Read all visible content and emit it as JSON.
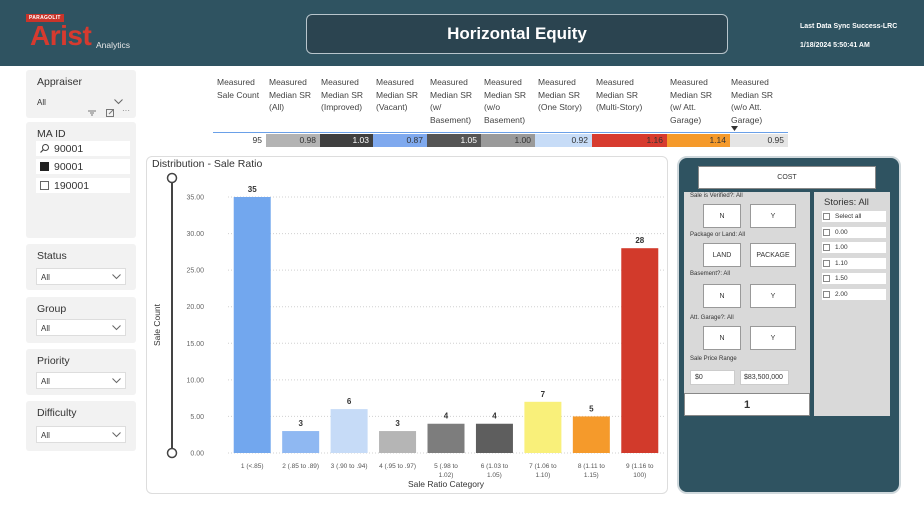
{
  "header": {
    "logo_badge": "PARAGOLIT",
    "logo_main": "Arist",
    "logo_sub": "Analytics",
    "title": "Horizontal Equity",
    "sync_label": "Last Data Sync Success-LRC",
    "sync_time": "1/18/2024 5:50:41 AM"
  },
  "slicers": {
    "appraiser": {
      "title": "Appraiser",
      "value": "All"
    },
    "ma_id": {
      "title": "MA ID",
      "search_value": "90001",
      "items": [
        {
          "label": "90001",
          "checked": true
        },
        {
          "label": "190001",
          "checked": false
        }
      ]
    },
    "status": {
      "title": "Status",
      "value": "All"
    },
    "group": {
      "title": "Group",
      "value": "All"
    },
    "priority": {
      "title": "Priority",
      "value": "All"
    },
    "difficulty": {
      "title": "Difficulty",
      "value": "All"
    }
  },
  "metrics": [
    {
      "head": [
        "Measured",
        "Sale Count"
      ],
      "value": "95",
      "color": "#ffffff",
      "fg": "#333333"
    },
    {
      "head": [
        "Measured",
        "Median SR",
        "(All)"
      ],
      "value": "0.98",
      "color": "#b3b3b3",
      "fg": "#333333"
    },
    {
      "head": [
        "Measured",
        "Median SR",
        "(Improved)"
      ],
      "value": "1.03",
      "color": "#3f3f3f",
      "fg": "#ffffff"
    },
    {
      "head": [
        "Measured",
        "Median SR",
        "(Vacant)"
      ],
      "value": "0.87",
      "color": "#7fa9ee",
      "fg": "#333333"
    },
    {
      "head": [
        "Measured",
        "Median SR",
        "(w/",
        "Basement)"
      ],
      "value": "1.05",
      "color": "#555555",
      "fg": "#ffffff"
    },
    {
      "head": [
        "Measured",
        "Median SR",
        "(w/o",
        "Basement)"
      ],
      "value": "1.00",
      "color": "#9a9a9a",
      "fg": "#333333"
    },
    {
      "head": [
        "Measured",
        "Median SR",
        "(One Story)"
      ],
      "value": "0.92",
      "color": "#c7dcf7",
      "fg": "#333333"
    },
    {
      "head": [
        "Measured",
        "Median SR",
        "(Multi-Story)"
      ],
      "value": "1.16",
      "color": "#d73b2f",
      "fg": "#333333"
    },
    {
      "head": [
        "Measured",
        "Median SR",
        "(w/ Att.",
        "Garage)"
      ],
      "value": "1.14",
      "color": "#f59a2b",
      "fg": "#333333"
    },
    {
      "head": [
        "Measured",
        "Median SR",
        "(w/o Att.",
        "Garage)"
      ],
      "value": "0.95",
      "color": "#e5e5e5",
      "fg": "#333333"
    }
  ],
  "chart_data": {
    "type": "bar",
    "title": "Distribution - Sale Ratio",
    "xlabel": "Sale Ratio Category",
    "ylabel": "Sale Count",
    "ylim": [
      0,
      35
    ],
    "yticks": [
      "0.00",
      "5.00",
      "10.00",
      "15.00",
      "20.00",
      "25.00",
      "30.00",
      "35.00"
    ],
    "grid": true,
    "categories": [
      [
        "1 (<.85)"
      ],
      [
        "2 (.85 to .89)"
      ],
      [
        "3 (.90 to .94)"
      ],
      [
        "4 (.95 to .97)"
      ],
      [
        "5 (.98 to",
        "1.02)"
      ],
      [
        "6 (1.03 to",
        "1.05)"
      ],
      [
        "7 (1.06 to",
        "1.10)"
      ],
      [
        "8 (1.11 to",
        "1.15)"
      ],
      [
        "9 (1.16 to",
        "100)"
      ]
    ],
    "values": [
      35,
      3,
      6,
      3,
      4,
      4,
      7,
      5,
      28
    ],
    "value_labels": [
      "35",
      "3",
      "6",
      "3",
      "4",
      "4",
      "7",
      "5",
      "28"
    ],
    "colors": [
      "#72a7ee",
      "#8fb8f2",
      "#c6dbf7",
      "#b5b5b5",
      "#7d7d7d",
      "#5e5e5e",
      "#f9f07a",
      "#f59a2b",
      "#d23a2b"
    ]
  },
  "filters": {
    "cost_label": "COST",
    "verified": {
      "label": "Sale is Verified?: All",
      "options": [
        "N",
        "Y"
      ]
    },
    "package": {
      "label": "Package or Land: All",
      "options": [
        "LAND",
        "PACKAGE"
      ]
    },
    "basement": {
      "label": "Basement?: All",
      "options": [
        "N",
        "Y"
      ]
    },
    "garage": {
      "label": "Att. Garage?: All",
      "options": [
        "N",
        "Y"
      ]
    },
    "price_range": {
      "label": "Sale Price Range",
      "min": "$0",
      "max": "$83,500,000"
    },
    "count_value": "1",
    "stories": {
      "title": "Stories: All",
      "items": [
        "Select all",
        "0.00",
        "1.00",
        "1.10",
        "1.50",
        "2.00"
      ]
    }
  }
}
